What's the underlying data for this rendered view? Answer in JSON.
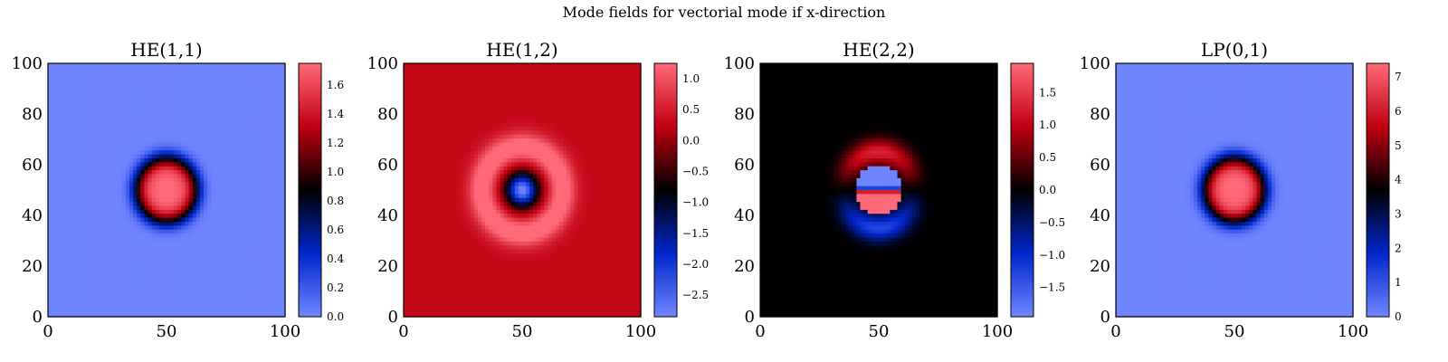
{
  "figure": {
    "suptitle": "Mode fields for vectorial mode if x-direction"
  },
  "chart_data": [
    {
      "type": "heatmap",
      "title": "HE(1,1)",
      "pattern": "fundamental",
      "xlim": [
        0,
        100
      ],
      "ylim": [
        0,
        100
      ],
      "x_ticks": [
        0,
        50,
        100
      ],
      "y_ticks": [
        0,
        20,
        40,
        60,
        80,
        100
      ],
      "center": [
        50,
        50
      ],
      "colorbar": {
        "min": 0.0,
        "max": 1.75,
        "ticks": [
          0.0,
          0.2,
          0.4,
          0.6,
          0.8,
          1.0,
          1.2,
          1.4,
          1.6
        ],
        "tick_labels": [
          "0.0",
          "0.2",
          "0.4",
          "0.6",
          "0.8",
          "1.0",
          "1.2",
          "1.4",
          "1.6"
        ]
      },
      "background_value": 0.0,
      "peak_value": 1.75,
      "colormap": [
        "#6f86ff",
        "#0026cc",
        "#000000",
        "#c00010",
        "#ff6a78"
      ],
      "grid": false
    },
    {
      "type": "heatmap",
      "title": "HE(1,2)",
      "pattern": "ring",
      "xlim": [
        0,
        100
      ],
      "ylim": [
        0,
        100
      ],
      "x_ticks": [
        0,
        50,
        100
      ],
      "y_ticks": [
        0,
        20,
        40,
        60,
        80,
        100
      ],
      "center": [
        50,
        50
      ],
      "colorbar": {
        "min": -2.85,
        "max": 1.25,
        "ticks": [
          -2.5,
          -2.0,
          -1.5,
          -1.0,
          -0.5,
          0.0,
          0.5,
          1.0
        ],
        "tick_labels": [
          "−2.5",
          "−2.0",
          "−1.5",
          "−1.0",
          "−0.5",
          "0.0",
          "0.5",
          "1.0"
        ]
      },
      "background_value": 0.3,
      "colormap": [
        "#6f86ff",
        "#0026cc",
        "#000000",
        "#c00010",
        "#ff6a78"
      ],
      "grid": false
    },
    {
      "type": "heatmap",
      "title": "HE(2,2)",
      "pattern": "dipole",
      "xlim": [
        0,
        100
      ],
      "ylim": [
        0,
        100
      ],
      "x_ticks": [
        0,
        50,
        100
      ],
      "y_ticks": [
        0,
        20,
        40,
        60,
        80,
        100
      ],
      "center": [
        50,
        50
      ],
      "colorbar": {
        "min": -1.95,
        "max": 1.95,
        "ticks": [
          -1.5,
          -1.0,
          -0.5,
          0.0,
          0.5,
          1.0,
          1.5
        ],
        "tick_labels": [
          "−1.5",
          "−1.0",
          "−0.5",
          "0.0",
          "0.5",
          "1.0",
          "1.5"
        ]
      },
      "background_value": 0.0,
      "colormap": [
        "#6f86ff",
        "#0026cc",
        "#000000",
        "#c00010",
        "#ff6a78"
      ],
      "grid": false
    },
    {
      "type": "heatmap",
      "title": "LP(0,1)",
      "pattern": "fundamental",
      "xlim": [
        0,
        100
      ],
      "ylim": [
        0,
        100
      ],
      "x_ticks": [
        0,
        50,
        100
      ],
      "y_ticks": [
        0,
        20,
        40,
        60,
        80,
        100
      ],
      "center": [
        50,
        50
      ],
      "colorbar": {
        "min": 0.0,
        "max": 7.4,
        "ticks": [
          0,
          1,
          2,
          3,
          4,
          5,
          6,
          7
        ],
        "tick_labels": [
          "0",
          "1",
          "2",
          "3",
          "4",
          "5",
          "6",
          "7"
        ]
      },
      "background_value": 0.0,
      "peak_value": 7.4,
      "colormap": [
        "#6f86ff",
        "#0026cc",
        "#000000",
        "#c00010",
        "#ff6a78"
      ],
      "grid": false
    }
  ]
}
